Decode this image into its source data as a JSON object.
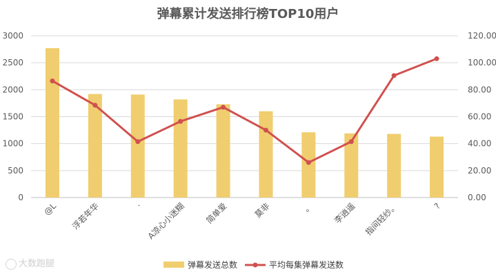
{
  "chart_data": {
    "type": "bar",
    "title": "弹幕累计发送排行榜TOP10用户",
    "categories": [
      "@L",
      "浮若年华",
      "·",
      "A凉心小迷糊",
      "简单爱",
      "莫非",
      "。",
      "李逍遥",
      "指间轻纱。",
      "?"
    ],
    "series": [
      {
        "name": "弹幕发送总数",
        "type": "bar",
        "axis": "left",
        "color": "#F0CD6E",
        "values": [
          2770,
          1920,
          1910,
          1820,
          1730,
          1600,
          1210,
          1190,
          1180,
          1130
        ]
      },
      {
        "name": "平均每集弹幕发送数",
        "type": "line",
        "axis": "right",
        "color": "#D0504F",
        "values": [
          86.5,
          68.5,
          41.5,
          56.5,
          67.0,
          50.0,
          26.0,
          41.5,
          90.5,
          103.0
        ]
      }
    ],
    "y_left": {
      "min": 0,
      "max": 3000,
      "step": 500,
      "ticks": [
        "0",
        "500",
        "1000",
        "1500",
        "2000",
        "2500",
        "3000"
      ]
    },
    "y_right": {
      "min": 0,
      "max": 120,
      "step": 20,
      "ticks": [
        "0.00",
        "20.00",
        "40.00",
        "60.00",
        "80.00",
        "100.00",
        "120.00"
      ]
    },
    "grid": true,
    "legend": "bottom"
  },
  "watermark": {
    "text": "大数跑腿"
  }
}
